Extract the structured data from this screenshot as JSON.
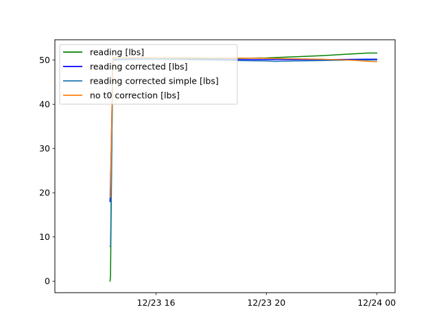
{
  "chart_data": {
    "type": "line",
    "title": "",
    "xlabel": "",
    "ylabel": "",
    "x_ticks": [
      "12/23 16",
      "12/23 20",
      "12/24 00"
    ],
    "y_ticks": [
      0,
      10,
      20,
      30,
      40,
      50
    ],
    "xlim": [
      "2022-12-23 12:20",
      "2022-12-24 00:40"
    ],
    "ylim": [
      -2.6,
      54.6
    ],
    "grid": false,
    "legend_position": "top-left",
    "series": [
      {
        "name": "reading [lbs]",
        "color": "#008000",
        "x": [
          "2022-12-23 14:20",
          "2022-12-23 14:21",
          "2022-12-23 14:26",
          "2022-12-23 15:00",
          "2022-12-23 16:00",
          "2022-12-23 18:00",
          "2022-12-23 19:00",
          "2022-12-23 20:00",
          "2022-12-23 22:00",
          "2022-12-23 23:40",
          "2022-12-24 00:00"
        ],
        "y": [
          0.0,
          1.0,
          50.2,
          50.3,
          50.3,
          50.3,
          50.4,
          50.5,
          51.0,
          51.6,
          51.6
        ]
      },
      {
        "name": "reading corrected [lbs]",
        "color": "#0000ff",
        "x": [
          "2022-12-23 14:20",
          "2022-12-23 14:22",
          "2022-12-23 14:26",
          "2022-12-23 15:00",
          "2022-12-23 16:00",
          "2022-12-23 18:00",
          "2022-12-23 20:00",
          "2022-12-23 22:00",
          "2022-12-23 23:40",
          "2022-12-24 00:00"
        ],
        "y": [
          18.0,
          27.0,
          50.1,
          50.2,
          50.2,
          50.1,
          50.1,
          50.1,
          50.2,
          50.2
        ]
      },
      {
        "name": "reading corrected simple [lbs]",
        "color": "#1f77b4",
        "x": [
          "2022-12-23 14:20",
          "2022-12-23 14:21",
          "2022-12-23 14:26",
          "2022-12-23 15:00",
          "2022-12-23 16:00",
          "2022-12-23 18:00",
          "2022-12-23 19:00",
          "2022-12-23 20:00",
          "2022-12-23 20:20",
          "2022-12-23 21:00",
          "2022-12-23 22:00",
          "2022-12-23 23:00",
          "2022-12-24 00:00"
        ],
        "y": [
          7.9,
          8.0,
          50.0,
          50.1,
          50.2,
          50.0,
          49.9,
          49.8,
          49.7,
          49.8,
          49.9,
          50.0,
          50.0
        ]
      },
      {
        "name": "no t0 correction [lbs]",
        "color": "#ff7f0e",
        "x": [
          "2022-12-23 14:20",
          "2022-12-23 14:21",
          "2022-12-23 14:26",
          "2022-12-23 15:00",
          "2022-12-23 16:00",
          "2022-12-23 18:00",
          "2022-12-23 20:00",
          "2022-12-23 21:00",
          "2022-12-23 22:00",
          "2022-12-23 23:00",
          "2022-12-24 00:00"
        ],
        "y": [
          19.0,
          19.2,
          50.6,
          50.6,
          50.6,
          50.5,
          50.4,
          50.3,
          50.2,
          50.0,
          49.6
        ]
      }
    ]
  }
}
